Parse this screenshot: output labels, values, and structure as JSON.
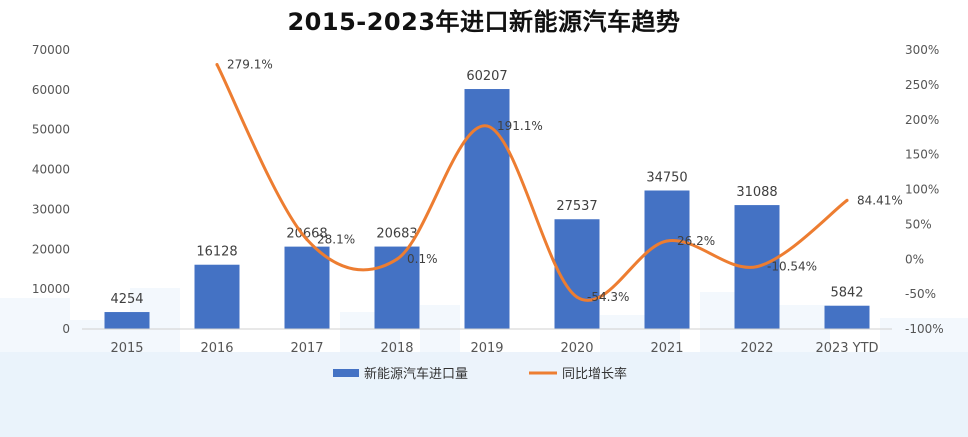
{
  "chart_data": {
    "type": "bar",
    "title": "2015-2023年进口新能源汽车趋势",
    "categories": [
      "2015",
      "2016",
      "2017",
      "2018",
      "2019",
      "2020",
      "2021",
      "2022",
      "2023 YTD"
    ],
    "series": [
      {
        "name": "新能源汽车进口量",
        "type": "bar",
        "axis": "left",
        "color": "#4472C4",
        "values": [
          4254,
          16128,
          20668,
          20683,
          60207,
          27537,
          34750,
          31088,
          5842
        ],
        "labels": [
          "4254",
          "16128",
          "20668",
          "20683",
          "60207",
          "27537",
          "34750",
          "31088",
          "5842"
        ]
      },
      {
        "name": "同比增长率",
        "type": "line",
        "axis": "right",
        "color": "#ED7D31",
        "values": [
          null,
          279.1,
          28.1,
          0.1,
          191.1,
          -54.3,
          26.2,
          -10.54,
          84.41
        ],
        "labels": [
          "",
          "279.1%",
          "28.1%",
          "0.1%",
          "191.1%",
          "-54.3%",
          "26.2%",
          "-10.54%",
          "84.41%"
        ]
      }
    ],
    "y_left": {
      "ylim": [
        0,
        70000
      ],
      "ticks": [
        0,
        10000,
        20000,
        30000,
        40000,
        50000,
        60000,
        70000
      ],
      "tick_labels": [
        "0",
        "10000",
        "20000",
        "30000",
        "40000",
        "50000",
        "60000",
        "70000"
      ]
    },
    "y_right": {
      "ylim": [
        -100,
        300
      ],
      "ticks": [
        -100,
        -50,
        0,
        50,
        100,
        150,
        200,
        250,
        300
      ],
      "tick_labels": [
        "-100%",
        "-50%",
        "0%",
        "50%",
        "100%",
        "150%",
        "200%",
        "250%",
        "300%"
      ]
    },
    "grid": false,
    "legend": "bottom",
    "background_color": "#EAF2FB"
  }
}
